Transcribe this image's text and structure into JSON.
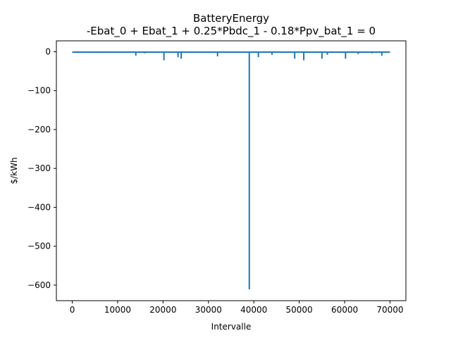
{
  "chart_data": {
    "type": "line",
    "title": "BatteryEnergy",
    "subtitle": "-Ebat_0 + Ebat_1 + 0.25*Pbdc_1 - 0.18*Ppv_bat_1 = 0",
    "xlabel": "Intervalle",
    "ylabel": "$/kWh",
    "xlim": [
      -3500,
      73500
    ],
    "ylim": [
      -640,
      28
    ],
    "x_ticks": [
      0,
      10000,
      20000,
      30000,
      40000,
      50000,
      60000,
      70000
    ],
    "x_tick_labels": [
      "0",
      "10000",
      "20000",
      "30000",
      "40000",
      "50000",
      "60000",
      "70000"
    ],
    "y_ticks": [
      0,
      -100,
      -200,
      -300,
      -400,
      -500,
      -600
    ],
    "y_tick_labels": [
      "0",
      "−100",
      "−200",
      "−300",
      "−400",
      "−500",
      "−600"
    ],
    "grid": false,
    "series": [
      {
        "color": "#1f77b4",
        "baseline": -1,
        "x_range": [
          0,
          70000
        ],
        "spikes": [
          {
            "x": 1200,
            "y": -3
          },
          {
            "x": 6000,
            "y": -3
          },
          {
            "x": 8500,
            "y": -3
          },
          {
            "x": 14000,
            "y": -10
          },
          {
            "x": 16000,
            "y": -4
          },
          {
            "x": 20200,
            "y": -22
          },
          {
            "x": 23300,
            "y": -14
          },
          {
            "x": 24000,
            "y": -18
          },
          {
            "x": 32000,
            "y": -12
          },
          {
            "x": 37500,
            "y": -2
          },
          {
            "x": 39000,
            "y": -611
          },
          {
            "x": 41000,
            "y": -14
          },
          {
            "x": 44000,
            "y": -8
          },
          {
            "x": 49000,
            "y": -18
          },
          {
            "x": 51000,
            "y": -22
          },
          {
            "x": 55000,
            "y": -18
          },
          {
            "x": 56200,
            "y": -8
          },
          {
            "x": 60200,
            "y": -18
          },
          {
            "x": 63000,
            "y": -6
          },
          {
            "x": 66000,
            "y": -4
          },
          {
            "x": 68200,
            "y": -10
          }
        ]
      }
    ]
  }
}
